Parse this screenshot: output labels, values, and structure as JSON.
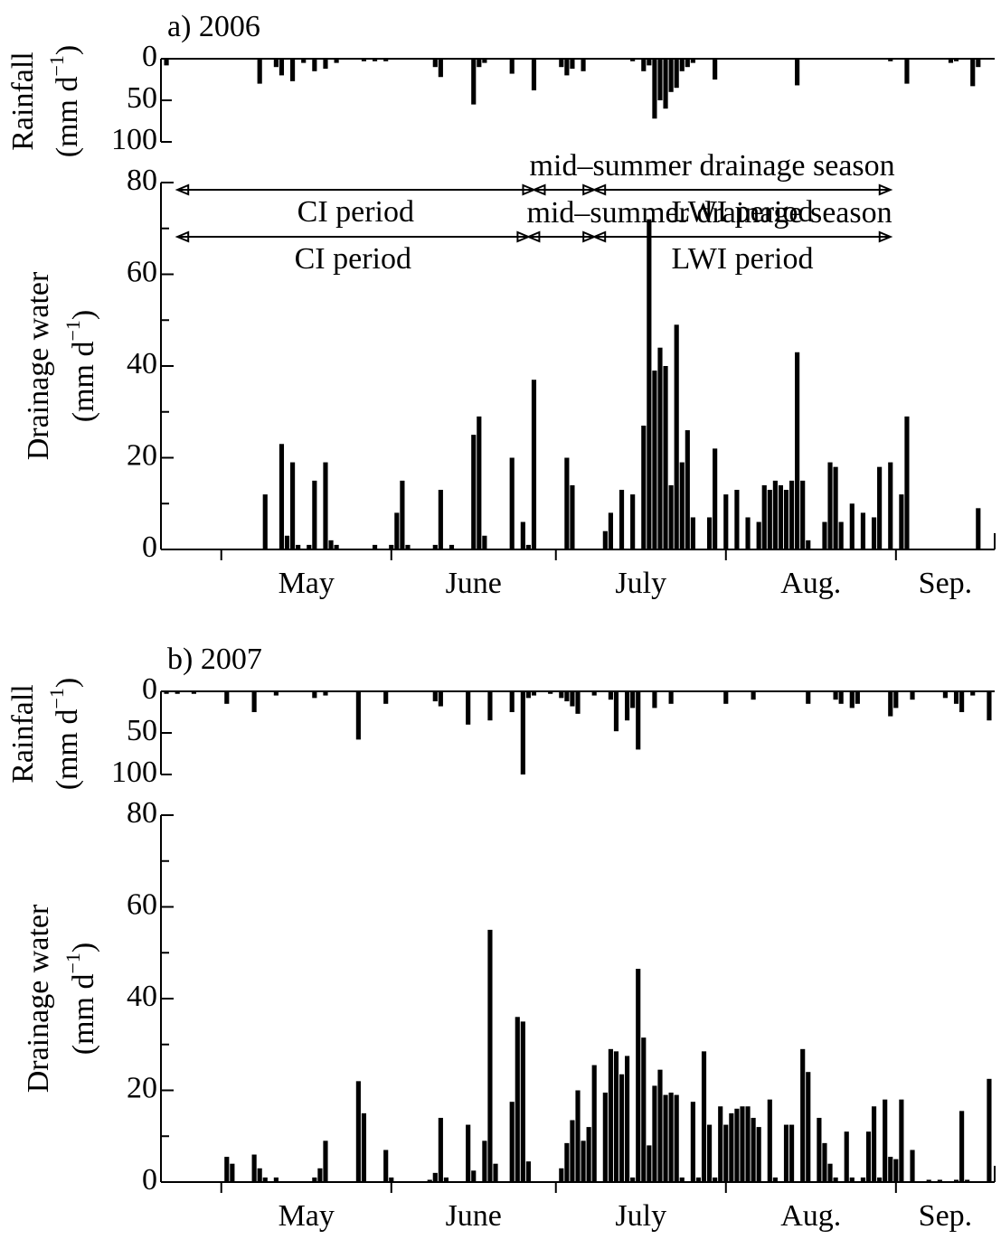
{
  "chart_data": [
    {
      "type": "bar",
      "title": "a) 2006",
      "unit": [
        "(mm d",
        "−1",
        ")"
      ],
      "xlim": [
        110,
        262
      ],
      "xticks": [
        {
          "value": 121,
          "label": "May"
        },
        {
          "value": 152,
          "label": "June"
        },
        {
          "value": 182,
          "label": "July"
        },
        {
          "value": 213,
          "label": "Aug."
        },
        {
          "value": 244,
          "label": "Sep."
        }
      ],
      "ylim": [
        0,
        80
      ],
      "yticks": [
        0,
        20,
        40,
        60,
        80
      ],
      "yminorticks": [
        10,
        30,
        50,
        70
      ],
      "y2lim": [
        0,
        100
      ],
      "y2ticks": [
        0,
        50,
        100
      ],
      "y2_inverted": true,
      "periods": [
        {
          "label": "CI period",
          "start": 113,
          "end": 178
        },
        {
          "label": "mid–summer drainage season",
          "start": 178,
          "end": 189
        },
        {
          "label": "LWI period",
          "start": 189,
          "end": 243
        }
      ],
      "series": [
        {
          "name": "Rainfall",
          "axis": "y2",
          "color": "#000000",
          "x": [
            111,
            128,
            131,
            132,
            134,
            136,
            138,
            140,
            142,
            147,
            149,
            151,
            160,
            161,
            167,
            168,
            169,
            174,
            178,
            183,
            184,
            185,
            187,
            196,
            198,
            199,
            200,
            201,
            202,
            203,
            204,
            205,
            206,
            207,
            211,
            226,
            243,
            246,
            254,
            255,
            258,
            259
          ],
          "values": [
            8,
            30,
            10,
            20,
            27,
            5,
            15,
            12,
            5,
            3,
            3,
            3,
            10,
            22,
            55,
            10,
            5,
            18,
            38,
            10,
            20,
            12,
            15,
            3,
            15,
            8,
            72,
            50,
            60,
            40,
            35,
            15,
            10,
            5,
            25,
            32,
            3,
            30,
            5,
            3,
            33,
            10
          ]
        },
        {
          "name": "Drainage water",
          "color": "#000000",
          "x": [
            129,
            132,
            133,
            134,
            135,
            137,
            138,
            140,
            141,
            142,
            149,
            152,
            153,
            154,
            155,
            160,
            161,
            163,
            167,
            168,
            169,
            174,
            176,
            177,
            178,
            184,
            185,
            191,
            192,
            194,
            196,
            198,
            199,
            200,
            201,
            202,
            203,
            204,
            205,
            206,
            207,
            210,
            211,
            213,
            215,
            217,
            219,
            220,
            221,
            222,
            223,
            224,
            225,
            226,
            227,
            228,
            231,
            232,
            233,
            234,
            236,
            238,
            240,
            241,
            243,
            245,
            246,
            259
          ],
          "values": [
            12,
            23,
            3,
            19,
            1,
            1,
            15,
            19,
            2,
            1,
            1,
            1,
            8,
            15,
            1,
            1,
            13,
            1,
            25,
            29,
            3,
            20,
            6,
            1,
            37,
            20,
            14,
            4,
            8,
            13,
            12,
            27,
            72,
            39,
            44,
            40,
            14,
            49,
            19,
            26,
            7,
            7,
            22,
            12,
            13,
            7,
            6,
            14,
            13,
            15,
            14,
            13,
            15,
            43,
            15,
            2,
            6,
            19,
            18,
            6,
            10,
            8,
            7,
            18,
            19,
            12,
            29,
            9
          ]
        }
      ]
    },
    {
      "type": "bar",
      "title": "b) 2007",
      "unit": [
        "(mm d",
        "−1",
        ")"
      ],
      "xlim": [
        110,
        262
      ],
      "xticks": [
        {
          "value": 121,
          "label": "May"
        },
        {
          "value": 152,
          "label": "June"
        },
        {
          "value": 182,
          "label": "July"
        },
        {
          "value": 213,
          "label": "Aug."
        },
        {
          "value": 244,
          "label": "Sep."
        }
      ],
      "ylim": [
        0,
        80
      ],
      "yticks": [
        0,
        20,
        40,
        60,
        80
      ],
      "yminorticks": [
        10,
        30,
        50,
        70
      ],
      "y2lim": [
        0,
        100
      ],
      "y2ticks": [
        0,
        50,
        100
      ],
      "y2_inverted": true,
      "periods": [
        {
          "label": "CI period",
          "start": 113,
          "end": 177
        },
        {
          "label": "mid–summer drainage season",
          "start": 177,
          "end": 189
        },
        {
          "label": "LWI period",
          "start": 189,
          "end": 243
        }
      ],
      "series": [
        {
          "name": "Rainfall",
          "axis": "y2",
          "color": "#000000",
          "x": [
            111,
            113,
            116,
            122,
            127,
            131,
            138,
            140,
            146,
            151,
            160,
            161,
            166,
            170,
            174,
            176,
            177,
            178,
            181,
            183,
            184,
            185,
            186,
            189,
            192,
            193,
            195,
            196,
            197,
            200,
            203,
            213,
            218,
            228,
            233,
            234,
            236,
            237,
            243,
            244,
            247,
            253,
            255,
            256,
            258,
            261
          ],
          "values": [
            3,
            3,
            3,
            15,
            25,
            5,
            8,
            5,
            58,
            15,
            12,
            18,
            40,
            35,
            25,
            100,
            8,
            5,
            3,
            8,
            12,
            18,
            27,
            5,
            10,
            48,
            35,
            20,
            70,
            20,
            15,
            15,
            10,
            15,
            10,
            15,
            20,
            15,
            30,
            20,
            10,
            8,
            15,
            25,
            5,
            35
          ]
        },
        {
          "name": "Drainage water",
          "color": "#000000",
          "x": [
            122,
            123,
            127,
            128,
            129,
            131,
            138,
            139,
            140,
            146,
            147,
            151,
            152,
            159,
            160,
            161,
            162,
            166,
            167,
            169,
            170,
            171,
            174,
            175,
            176,
            177,
            183,
            184,
            185,
            186,
            187,
            188,
            189,
            191,
            192,
            193,
            194,
            195,
            196,
            197,
            198,
            199,
            200,
            201,
            202,
            203,
            204,
            205,
            207,
            208,
            209,
            210,
            211,
            212,
            213,
            214,
            215,
            216,
            217,
            218,
            219,
            221,
            222,
            224,
            225,
            227,
            228,
            230,
            231,
            232,
            233,
            235,
            236,
            238,
            239,
            240,
            241,
            242,
            243,
            244,
            245,
            247,
            250,
            252,
            255,
            256,
            257,
            261
          ],
          "values": [
            5.5,
            4,
            6,
            3,
            1,
            1,
            1,
            3,
            9,
            22,
            15,
            7,
            1,
            0.5,
            2,
            14,
            1,
            12.5,
            2.5,
            9,
            55,
            4,
            17.5,
            36,
            35,
            4.5,
            3,
            8.5,
            13.5,
            20,
            9,
            12,
            25.5,
            19.5,
            29,
            28.5,
            23.5,
            27.5,
            1,
            46.5,
            31.5,
            8,
            21,
            24.5,
            19,
            19.5,
            19,
            1,
            17.5,
            1,
            28.5,
            12.5,
            1,
            16.5,
            12.5,
            15,
            16,
            16.5,
            16.5,
            14,
            12,
            18,
            1,
            12.5,
            12.5,
            29,
            24,
            14,
            8.5,
            4,
            1,
            11,
            1,
            1,
            11,
            16.5,
            1,
            18,
            5.5,
            5,
            18,
            7,
            0.5,
            0.5,
            0.5,
            15.5,
            0.5,
            22.5
          ]
        }
      ]
    }
  ]
}
